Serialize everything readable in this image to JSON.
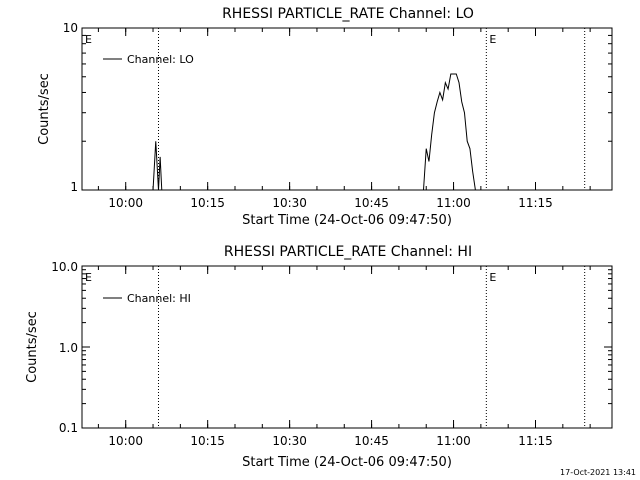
{
  "chart_data": [
    {
      "type": "line",
      "title": "RHESSI PARTICLE_RATE Channel: LO",
      "xlabel": "Start Time (24-Oct-06 09:47:50)",
      "ylabel": "Counts/sec",
      "yscale": "log",
      "ylim": [
        1,
        10
      ],
      "y_ticks": [
        1,
        10
      ],
      "y_tick_labels": [
        "1",
        "10"
      ],
      "x_ticks": [
        "10:00",
        "10:15",
        "10:30",
        "10:45",
        "11:00",
        "11:15"
      ],
      "xlim": [
        "09:52",
        "11:29"
      ],
      "legend": "Channel: LO",
      "legend_position": "top-left",
      "markers": [
        {
          "label": "E",
          "time": "09:52"
        },
        {
          "label": "",
          "time": "10:06"
        },
        {
          "label": "E",
          "time": "11:06"
        },
        {
          "label": "",
          "time": "11:24"
        }
      ],
      "series": [
        {
          "name": "Channel: LO",
          "x": [
            "10:05",
            "10:05.5",
            "10:06",
            "10:06.3",
            "10:06.6",
            "10:06.9",
            "10:54.5",
            "10:55",
            "10:55.5",
            "10:56",
            "10:56.5",
            "10:57",
            "10:57.5",
            "10:58",
            "10:58.5",
            "10:59",
            "10:59.5",
            "11:00",
            "11:00.5",
            "11:01",
            "11:01.5",
            "11:02",
            "11:02.5",
            "11:03",
            "11:03.5",
            "11:04"
          ],
          "values": [
            1,
            2,
            1,
            1.6,
            1,
            1,
            1,
            1.8,
            1.5,
            2.2,
            3,
            3.5,
            4,
            3.6,
            4.6,
            4.2,
            5.2,
            5.2,
            5.2,
            4.6,
            3.5,
            3,
            2,
            1.8,
            1.3,
            1
          ]
        }
      ]
    },
    {
      "type": "line",
      "title": "RHESSI PARTICLE_RATE Channel: HI",
      "xlabel": "Start Time (24-Oct-06 09:47:50)",
      "ylabel": "Counts/sec",
      "yscale": "log",
      "ylim": [
        0.1,
        10
      ],
      "y_ticks": [
        0.1,
        1,
        10
      ],
      "y_tick_labels": [
        "0.1",
        "1.0",
        "10.0"
      ],
      "x_ticks": [
        "10:00",
        "10:15",
        "10:30",
        "10:45",
        "11:00",
        "11:15"
      ],
      "xlim": [
        "09:52",
        "11:29"
      ],
      "legend": "Channel: HI",
      "legend_position": "top-left",
      "markers": [
        {
          "label": "E",
          "time": "09:52"
        },
        {
          "label": "",
          "time": "10:06"
        },
        {
          "label": "E",
          "time": "11:06"
        },
        {
          "label": "",
          "time": "11:24"
        }
      ],
      "series": [
        {
          "name": "Channel: HI",
          "x": [],
          "values": []
        }
      ]
    }
  ],
  "footer": {
    "timestamp": "17-Oct-2021 13:41"
  }
}
